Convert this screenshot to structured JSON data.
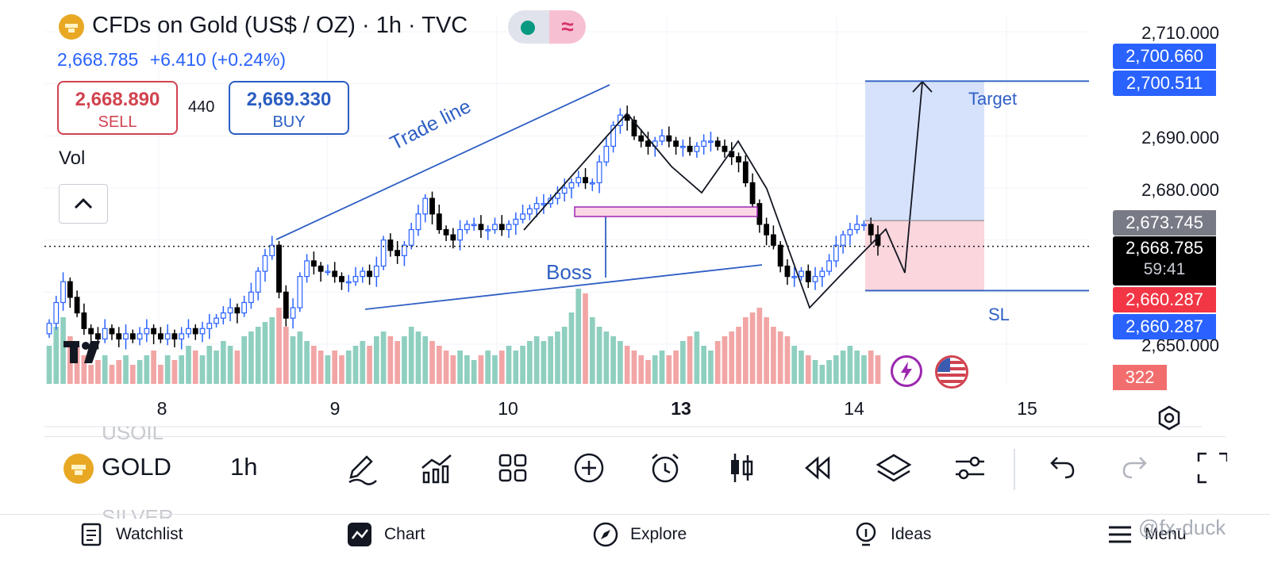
{
  "header": {
    "title": "CFDs on Gold (US$ / OZ) · 1h · TVC",
    "gold_icon": "gold-bars-icon",
    "status_icon": "market-open-dot-icon",
    "wave_icon": "wave-icon",
    "last_price": "2,668.785",
    "change": "+6.410 (+0.24%)"
  },
  "trade": {
    "sell_price": "2,668.890",
    "sell_label": "SELL",
    "spread": "440",
    "buy_price": "2,669.330",
    "buy_label": "BUY"
  },
  "indicator": {
    "vol_label": "Vol",
    "collapse_icon": "chevron-up-icon"
  },
  "price_axis": {
    "labels": [
      "2,710.000",
      "2,690.000",
      "2,680.000",
      "2,650.000"
    ],
    "tags": {
      "target_top": "2,700.660",
      "target_line": "2,700.511",
      "stop_zone_top": "2,673.745",
      "current": "2,668.785",
      "countdown": "59:41",
      "sl_red": "2,660.287",
      "sl_blue": "2,660.287",
      "volume": "322"
    },
    "settings_icon": "hexagon-settings-icon"
  },
  "time_axis": {
    "labels": [
      "8",
      "9",
      "10",
      "13",
      "14",
      "15"
    ]
  },
  "annotations": {
    "trade_line": "Trade line",
    "boss": "Boss",
    "target": "Target",
    "sl": "SL"
  },
  "colors": {
    "up_candle": "#2962ff",
    "down_candle": "#000000",
    "vol_up": "#8fcfc0",
    "vol_down": "#f2a5a5",
    "target_zone": "#d6e2fb",
    "stop_zone": "#fbd6dc",
    "drawing_blue": "#2f5fc4"
  },
  "toolbar": {
    "symbol_above": "USOIL",
    "symbol": "GOLD",
    "symbol_below": "SILVER",
    "timeframe": "1h",
    "icons": [
      "pencil-draw-icon",
      "indicators-icon",
      "grid-layout-icon",
      "add-icon",
      "alarm-icon",
      "candle-type-icon",
      "replay-icon",
      "layers-icon",
      "settings-sliders-icon",
      "undo-icon",
      "redo-icon",
      "fullscreen-icon"
    ]
  },
  "nav": {
    "watchlist": "Watchlist",
    "chart": "Chart",
    "explore": "Explore",
    "ideas": "Ideas",
    "menu": "Menu"
  },
  "watermark": "@fx-duck",
  "chart_data": {
    "type": "candlestick",
    "symbol": "CFDs on Gold (US$ / OZ)",
    "interval": "1h",
    "x_ticks": [
      "8",
      "9",
      "10",
      "13",
      "14",
      "15"
    ],
    "y_ticks": [
      2650,
      2680,
      2690,
      2710
    ],
    "ylim": [
      2647,
      2712
    ],
    "close_series": [
      2654,
      2658,
      2662,
      2659,
      2656,
      2653,
      2652,
      2651,
      2653,
      2652,
      2651,
      2652,
      2651,
      2652,
      2653,
      2652,
      2651,
      2652,
      2651,
      2652,
      2653,
      2652,
      2653,
      2654,
      2655,
      2656,
      2657,
      2656,
      2658,
      2660,
      2664,
      2667,
      2669,
      2660,
      2655,
      2657,
      2663,
      2666,
      2665,
      2664,
      2664,
      2663,
      2662,
      2662,
      2663,
      2664,
      2663,
      2665,
      2670,
      2668,
      2667,
      2669,
      2672,
      2675,
      2678,
      2675,
      2672,
      2671,
      2670,
      2672,
      2673,
      2673,
      2672,
      2672,
      2673,
      2672,
      2673,
      2674,
      2675,
      2676,
      2677,
      2677,
      2678,
      2679,
      2680,
      2681,
      2682,
      2681,
      2681,
      2685,
      2688,
      2692,
      2694,
      2693,
      2690,
      2689,
      2688,
      2689,
      2690,
      2689,
      2688,
      2688,
      2687,
      2688,
      2689,
      2689,
      2688,
      2687,
      2686,
      2685,
      2681,
      2677,
      2673,
      2671,
      2669,
      2665,
      2663,
      2663,
      2664,
      2662,
      2663,
      2664,
      2666,
      2669,
      2671,
      2672,
      2673,
      2673,
      2671,
      2669
    ],
    "volume_relative": [
      0.4,
      0.6,
      0.7,
      0.5,
      0.4,
      0.3,
      0.2,
      0.25,
      0.3,
      0.2,
      0.25,
      0.3,
      0.2,
      0.25,
      0.3,
      0.35,
      0.2,
      0.3,
      0.25,
      0.3,
      0.4,
      0.35,
      0.3,
      0.4,
      0.35,
      0.45,
      0.4,
      0.35,
      0.5,
      0.55,
      0.6,
      0.65,
      0.7,
      0.8,
      0.6,
      0.5,
      0.55,
      0.45,
      0.4,
      0.35,
      0.3,
      0.35,
      0.3,
      0.35,
      0.4,
      0.45,
      0.4,
      0.5,
      0.55,
      0.5,
      0.45,
      0.5,
      0.6,
      0.55,
      0.5,
      0.45,
      0.4,
      0.35,
      0.3,
      0.35,
      0.3,
      0.25,
      0.3,
      0.35,
      0.3,
      0.35,
      0.4,
      0.35,
      0.4,
      0.45,
      0.5,
      0.45,
      0.5,
      0.55,
      0.6,
      0.75,
      1.0,
      0.95,
      0.7,
      0.6,
      0.55,
      0.5,
      0.45,
      0.4,
      0.35,
      0.3,
      0.25,
      0.3,
      0.35,
      0.3,
      0.35,
      0.45,
      0.5,
      0.55,
      0.4,
      0.35,
      0.45,
      0.5,
      0.55,
      0.6,
      0.7,
      0.75,
      0.8,
      0.7,
      0.6,
      0.55,
      0.5,
      0.4,
      0.35,
      0.3,
      0.25,
      0.2,
      0.25,
      0.3,
      0.35,
      0.4,
      0.35,
      0.3,
      0.35,
      0.3
    ],
    "levels": {
      "target": 2700.511,
      "entry": 2673.745,
      "current": 2668.785,
      "stop_loss": 2660.287
    }
  }
}
